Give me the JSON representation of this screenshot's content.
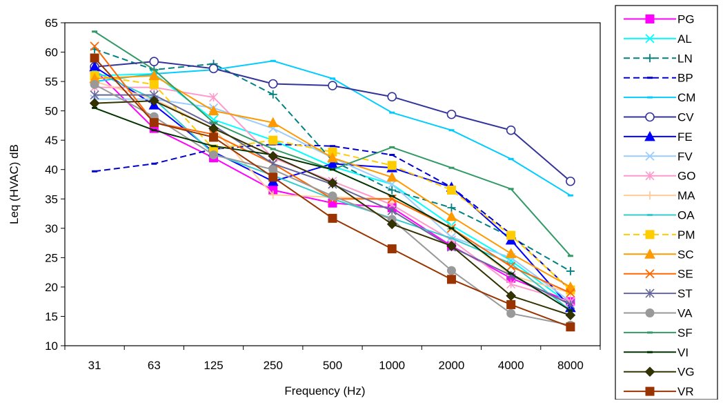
{
  "chart_data": {
    "type": "line",
    "title": "",
    "xlabel": "Frequency (Hz)",
    "ylabel": "Leq (HVAC)  dB",
    "categories": [
      "31",
      "63",
      "125",
      "250",
      "500",
      "1000",
      "2000",
      "4000",
      "8000"
    ],
    "ylim": [
      10,
      65
    ],
    "yticks": [
      10,
      15,
      20,
      25,
      30,
      35,
      40,
      45,
      50,
      55,
      60,
      65
    ],
    "grid": false,
    "legend_position": "right",
    "series": [
      {
        "name": "PG",
        "color": "#FF00FF",
        "marker": "square",
        "dash": "solid",
        "values": [
          57.0,
          47.0,
          42.0,
          36.5,
          34.3,
          33.5,
          27.0,
          21.5,
          17.5
        ]
      },
      {
        "name": "AL",
        "color": "#00FFFF",
        "marker": "x",
        "dash": "solid",
        "values": [
          56.0,
          56.3,
          48.5,
          45.0,
          40.5,
          37.5,
          30.5,
          24.5,
          17.0
        ]
      },
      {
        "name": "LN",
        "color": "#008080",
        "marker": "plus",
        "dash": "dash",
        "values": [
          60.5,
          57.0,
          58.0,
          52.8,
          41.5,
          36.5,
          33.5,
          28.5,
          22.7
        ]
      },
      {
        "name": "BP",
        "color": "#0000CC",
        "marker": "dash",
        "dash": "dash",
        "values": [
          39.7,
          41.0,
          43.5,
          44.3,
          44.0,
          42.5,
          37.0,
          29.0,
          19.5
        ]
      },
      {
        "name": "CM",
        "color": "#00CCFF",
        "marker": "dash",
        "dash": "solid",
        "values": [
          55.0,
          56.3,
          57.0,
          58.5,
          55.5,
          49.7,
          46.7,
          41.8,
          35.6
        ]
      },
      {
        "name": "CV",
        "color": "#333399",
        "marker": "circle-open",
        "dash": "solid",
        "values": [
          57.5,
          58.4,
          57.2,
          54.6,
          54.3,
          52.4,
          49.4,
          46.7,
          38.0
        ]
      },
      {
        "name": "FE",
        "color": "#0000FF",
        "marker": "triangle",
        "dash": "solid",
        "values": [
          57.5,
          51.0,
          43.0,
          38.0,
          41.0,
          40.3,
          37.0,
          28.0,
          16.5
        ]
      },
      {
        "name": "FV",
        "color": "#99CCFF",
        "marker": "x",
        "dash": "solid",
        "values": [
          52.0,
          52.0,
          50.5,
          47.0,
          42.0,
          37.5,
          28.5,
          25.0,
          17.5
        ]
      },
      {
        "name": "GO",
        "color": "#FF99CC",
        "marker": "asterisk",
        "dash": "solid",
        "values": [
          54.0,
          54.0,
          52.3,
          42.0,
          38.0,
          34.0,
          28.0,
          20.5,
          17.5
        ]
      },
      {
        "name": "MA",
        "color": "#FFCC99",
        "marker": "plus",
        "dash": "solid",
        "values": [
          55.0,
          52.0,
          47.0,
          35.7,
          35.3,
          35.0,
          30.0,
          22.0,
          19.0
        ]
      },
      {
        "name": "OA",
        "color": "#33CCCC",
        "marker": "dash",
        "dash": "solid",
        "values": [
          56.7,
          52.0,
          42.7,
          39.0,
          35.0,
          31.7,
          28.3,
          24.0,
          16.0
        ]
      },
      {
        "name": "PM",
        "color": "#FFCC00",
        "marker": "square",
        "dash": "dash",
        "values": [
          56.0,
          54.5,
          43.5,
          45.0,
          43.0,
          40.7,
          36.5,
          28.8,
          19.5
        ]
      },
      {
        "name": "SC",
        "color": "#FF9900",
        "marker": "triangle",
        "dash": "solid",
        "values": [
          55.5,
          56.0,
          50.0,
          48.0,
          42.0,
          38.7,
          32.0,
          25.7,
          20.0
        ]
      },
      {
        "name": "SE",
        "color": "#FF6600",
        "marker": "x",
        "dash": "solid",
        "values": [
          61.0,
          48.0,
          46.0,
          41.0,
          35.0,
          35.0,
          30.0,
          23.5,
          19.0
        ]
      },
      {
        "name": "ST",
        "color": "#666699",
        "marker": "asterisk",
        "dash": "solid",
        "values": [
          52.7,
          52.7,
          47.5,
          41.0,
          37.5,
          33.0,
          26.8,
          22.0,
          17.0
        ]
      },
      {
        "name": "VA",
        "color": "#999999",
        "marker": "circle",
        "dash": "solid",
        "values": [
          54.5,
          49.0,
          42.5,
          40.0,
          35.5,
          31.5,
          22.8,
          15.5,
          13.5
        ]
      },
      {
        "name": "SF",
        "color": "#339966",
        "marker": "dash",
        "dash": "solid",
        "values": [
          63.5,
          57.0,
          48.0,
          43.5,
          40.0,
          43.8,
          40.3,
          36.7,
          25.3
        ]
      },
      {
        "name": "VI",
        "color": "#003300",
        "marker": "dash",
        "dash": "solid",
        "values": [
          50.5,
          46.7,
          44.0,
          42.5,
          40.0,
          35.5,
          30.0,
          22.3,
          16.0
        ]
      },
      {
        "name": "VG",
        "color": "#333300",
        "marker": "diamond",
        "dash": "solid",
        "values": [
          51.3,
          51.7,
          47.0,
          42.3,
          37.7,
          30.7,
          27.0,
          18.5,
          15.2
        ]
      },
      {
        "name": "VR",
        "color": "#993300",
        "marker": "square",
        "dash": "solid",
        "values": [
          59.0,
          48.0,
          45.5,
          38.7,
          31.7,
          26.5,
          21.3,
          17.0,
          13.2
        ]
      }
    ]
  }
}
